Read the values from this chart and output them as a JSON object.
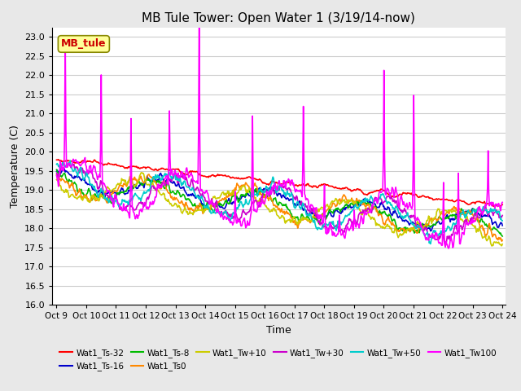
{
  "title": "MB Tule Tower: Open Water 1 (3/19/14-now)",
  "xlabel": "Time",
  "ylabel": "Temperature (C)",
  "ylim": [
    16.0,
    23.25
  ],
  "yticks": [
    16.0,
    16.5,
    17.0,
    17.5,
    18.0,
    18.5,
    19.0,
    19.5,
    20.0,
    20.5,
    21.0,
    21.5,
    22.0,
    22.5,
    23.0
  ],
  "series": [
    {
      "label": "Wat1_Ts-32",
      "color": "#FF0000",
      "lw": 1.2
    },
    {
      "label": "Wat1_Ts-16",
      "color": "#0000CC",
      "lw": 1.2
    },
    {
      "label": "Wat1_Ts-8",
      "color": "#00BB00",
      "lw": 1.2
    },
    {
      "label": "Wat1_Ts0",
      "color": "#FF8800",
      "lw": 1.2
    },
    {
      "label": "Wat1_Tw+10",
      "color": "#CCCC00",
      "lw": 1.2
    },
    {
      "label": "Wat1_Tw+30",
      "color": "#CC00CC",
      "lw": 1.2
    },
    {
      "label": "Wat1_Tw+50",
      "color": "#00CCCC",
      "lw": 1.2
    },
    {
      "label": "Wat1_Tw100",
      "color": "#FF00FF",
      "lw": 1.2
    }
  ],
  "annotation_text": "MB_tule",
  "annotation_color": "#CC0000",
  "background_color": "#E8E8E8",
  "plot_bg_color": "#FFFFFF",
  "grid_color": "#CCCCCC",
  "n_points": 720,
  "x_start": 9.0,
  "x_end": 24.0,
  "x_ticks": [
    9,
    10,
    11,
    12,
    13,
    14,
    15,
    16,
    17,
    18,
    19,
    20,
    21,
    22,
    23,
    24
  ],
  "x_tick_labels": [
    "Oct 9",
    "Oct 10",
    "Oct 11",
    "Oct 12",
    "Oct 13",
    "Oct 14",
    "Oct 15",
    "Oct 16",
    "Oct 17",
    "Oct 18",
    "Oct 19",
    "Oct 20",
    "Oct 21",
    "Oct 22",
    "Oct 23",
    "Oct 24"
  ]
}
